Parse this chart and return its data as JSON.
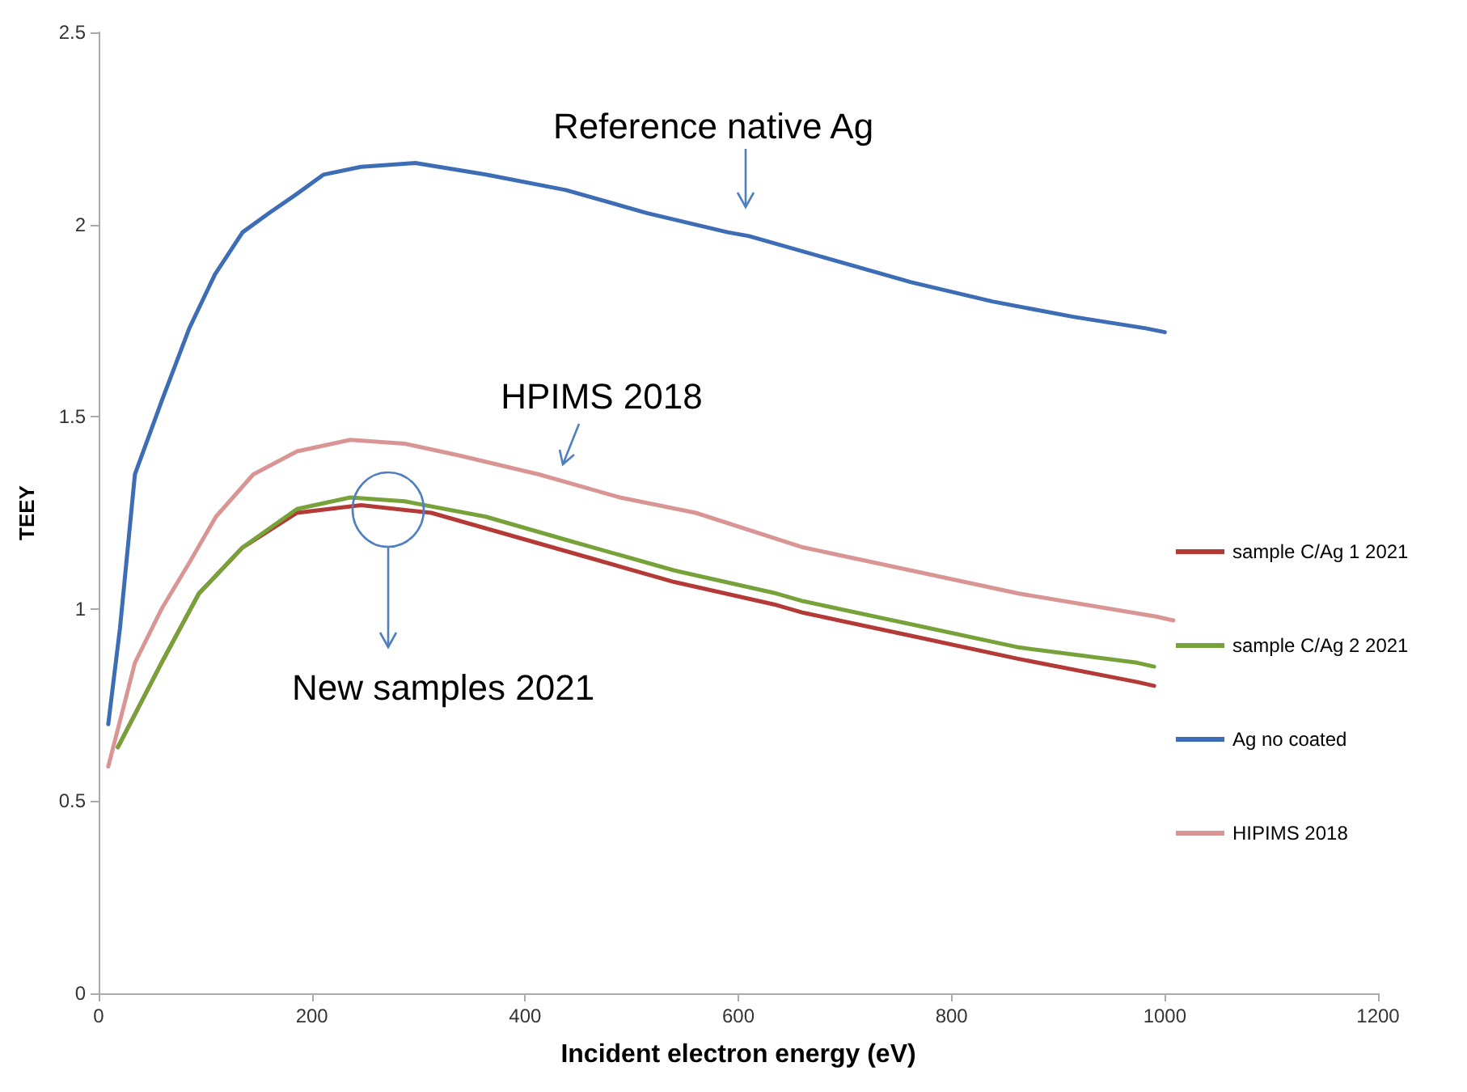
{
  "chart_data": {
    "type": "line",
    "xlabel": "Incident electron energy (eV)",
    "ylabel": "TEEY",
    "xlim": [
      0,
      1200
    ],
    "xticks": [
      0,
      200,
      400,
      600,
      800,
      1000,
      1200
    ],
    "ylim": [
      0,
      2.5
    ],
    "yticks": [
      0,
      0.5,
      1,
      1.5,
      2,
      2.5
    ],
    "grid": false,
    "legend": "right",
    "marker": "none",
    "line_style": "solid",
    "annotations": [
      "Reference native Ag",
      "HPIMS 2018",
      "New samples 2021"
    ],
    "series": [
      {
        "name": "sample C/Ag 1 2021",
        "color": "#b33a36",
        "x": [
          18,
          59,
          94,
          135,
          186,
          246,
          312,
          388,
          464,
          540,
          636,
          661,
          762,
          863,
          974,
          990
        ],
        "values": [
          0.64,
          0.86,
          1.04,
          1.16,
          1.25,
          1.27,
          1.25,
          1.19,
          1.13,
          1.07,
          1.01,
          0.99,
          0.93,
          0.87,
          0.81,
          0.8
        ]
      },
      {
        "name": "sample C/Ag 2 2021",
        "color": "#77a23a",
        "x": [
          18,
          59,
          94,
          135,
          186,
          236,
          287,
          363,
          438,
          540,
          636,
          661,
          762,
          863,
          974,
          990
        ],
        "values": [
          0.64,
          0.86,
          1.04,
          1.16,
          1.26,
          1.29,
          1.28,
          1.24,
          1.18,
          1.1,
          1.04,
          1.02,
          0.96,
          0.9,
          0.86,
          0.85
        ]
      },
      {
        "name": "Ag no coated",
        "color": "#3d6db5",
        "x": [
          9,
          20,
          34,
          59,
          85,
          109,
          135,
          160,
          186,
          211,
          246,
          297,
          363,
          438,
          514,
          590,
          610,
          686,
          762,
          838,
          914,
          982,
          1000
        ],
        "values": [
          0.7,
          0.95,
          1.35,
          1.54,
          1.73,
          1.87,
          1.98,
          2.03,
          2.08,
          2.13,
          2.15,
          2.16,
          2.13,
          2.09,
          2.03,
          1.98,
          1.97,
          1.91,
          1.85,
          1.8,
          1.76,
          1.73,
          1.72
        ]
      },
      {
        "name": "HIPIMS 2018",
        "color": "#d99594",
        "x": [
          9,
          34,
          59,
          85,
          110,
          145,
          186,
          236,
          287,
          337,
          413,
          489,
          560,
          661,
          762,
          863,
          992,
          1008
        ],
        "values": [
          0.59,
          0.86,
          1.0,
          1.12,
          1.24,
          1.35,
          1.41,
          1.44,
          1.43,
          1.4,
          1.35,
          1.29,
          1.25,
          1.16,
          1.1,
          1.04,
          0.98,
          0.97
        ]
      }
    ]
  }
}
